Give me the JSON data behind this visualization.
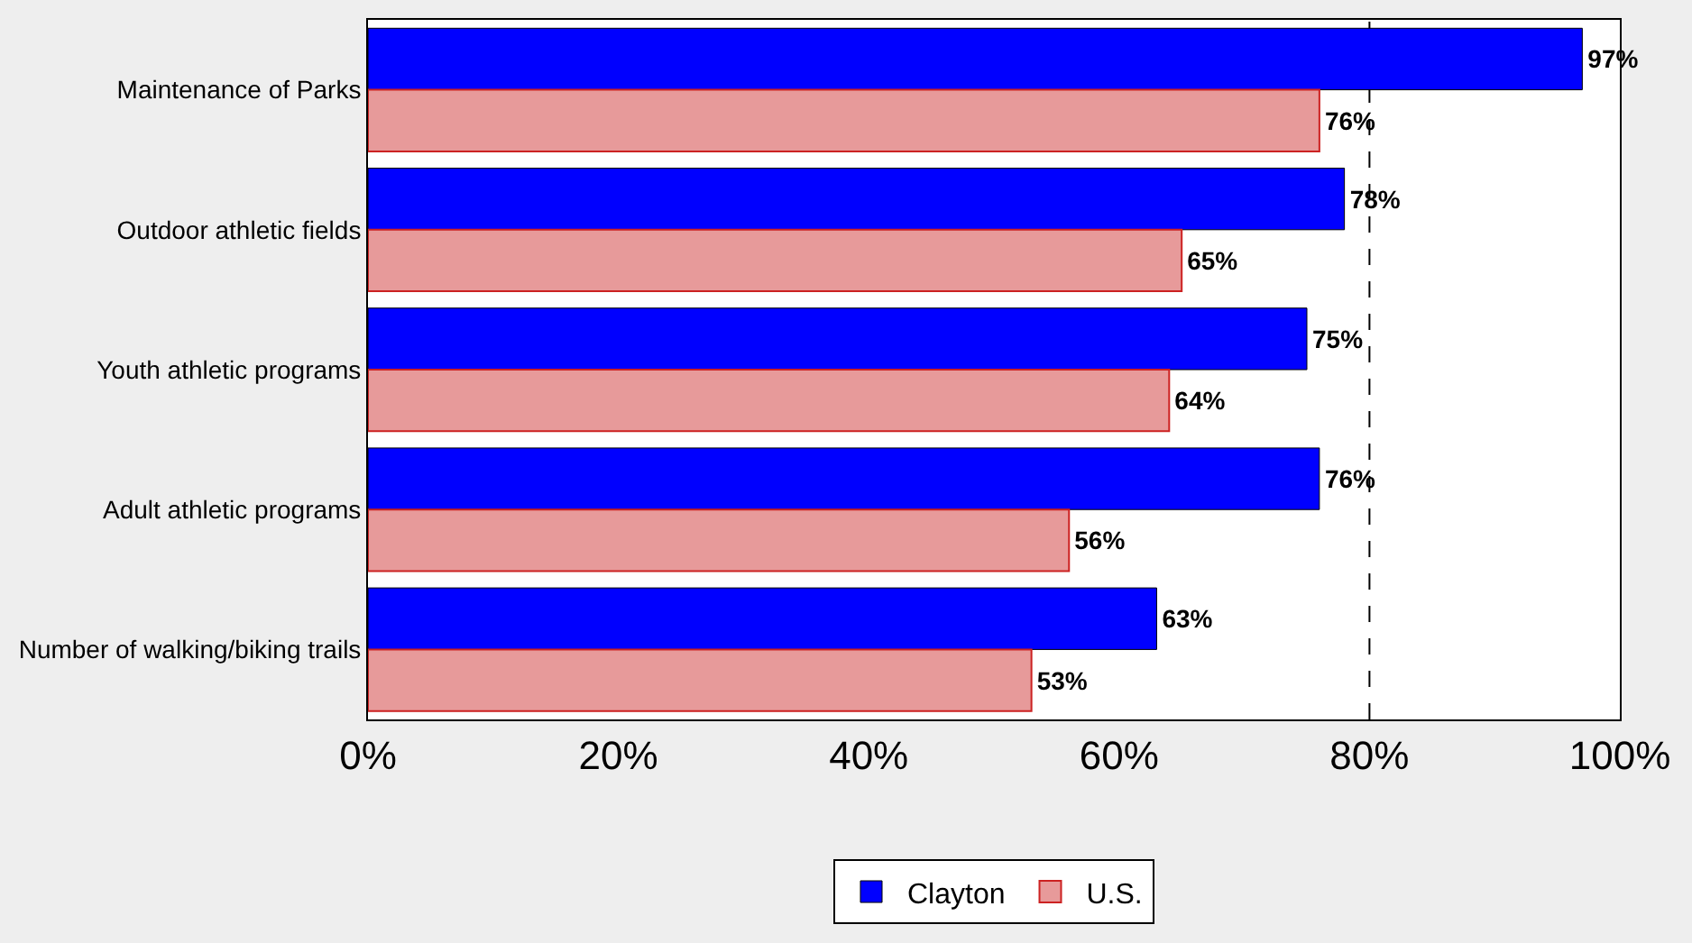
{
  "chart_data": {
    "type": "bar",
    "orientation": "horizontal",
    "categories": [
      "Maintenance of Parks",
      "Outdoor athletic fields",
      "Youth athletic programs",
      "Adult athletic programs",
      "Number of walking/biking trails"
    ],
    "series": [
      {
        "name": "Clayton",
        "color": "#0000ff",
        "values": [
          97,
          78,
          75,
          76,
          63
        ],
        "value_labels": [
          "97%",
          "78%",
          "75%",
          "76%",
          "63%"
        ]
      },
      {
        "name": "U.S.",
        "color": "#e79a9a",
        "values": [
          76,
          65,
          64,
          56,
          53
        ],
        "value_labels": [
          "76%",
          "65%",
          "64%",
          "56%",
          "53%"
        ]
      }
    ],
    "xlim": [
      0,
      100
    ],
    "xticks": [
      {
        "value": 0,
        "label": "0%"
      },
      {
        "value": 20,
        "label": "20%"
      },
      {
        "value": 40,
        "label": "40%"
      },
      {
        "value": 60,
        "label": "60%"
      },
      {
        "value": 80,
        "label": "80%"
      },
      {
        "value": 100,
        "label": "100%"
      }
    ],
    "ref_lines": [
      {
        "axis": "x",
        "value": 80,
        "label": null,
        "color": "#000000",
        "line_style": "dashed"
      }
    ],
    "legend": "bottom",
    "grid": false
  }
}
